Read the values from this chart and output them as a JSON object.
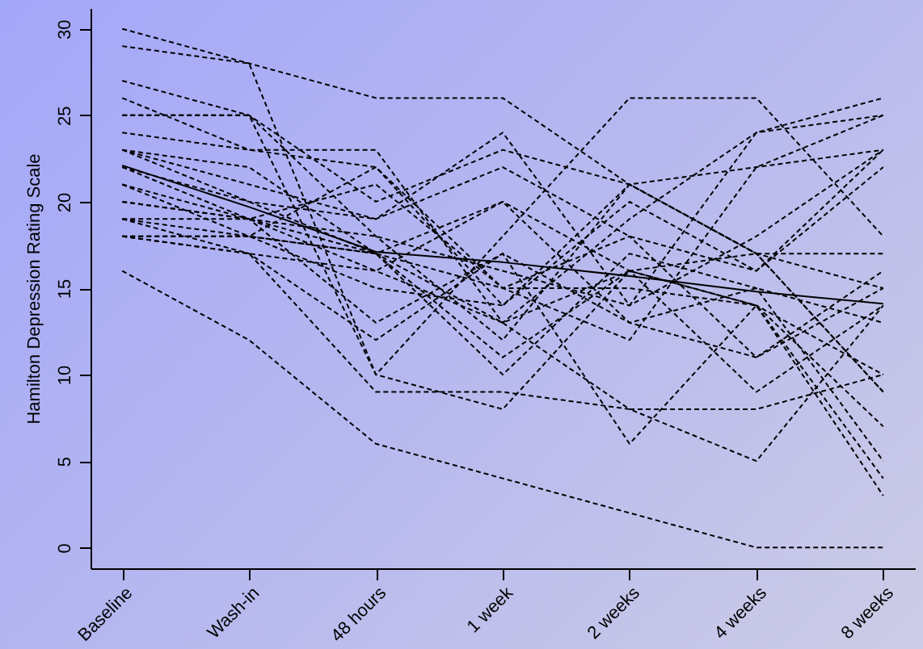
{
  "chart_data": {
    "type": "line",
    "ylabel": "Hamilton Depression Rating Scale",
    "categories": [
      "Baseline",
      "Wash-in",
      "48 hours",
      "1 week",
      "2 weeks",
      "4 weeks",
      "8 weeks"
    ],
    "ylim": [
      -1.2,
      31.2
    ],
    "yticks": [
      0,
      5,
      10,
      15,
      20,
      25,
      30
    ],
    "grid": false,
    "marker": "none",
    "series": [
      {
        "color": "#000000",
        "line_style": "dashed",
        "values": [
          30,
          28,
          26,
          26,
          21,
          17,
          15
        ]
      },
      {
        "color": "#000000",
        "line_style": "dashed",
        "values": [
          29,
          28,
          10,
          18,
          26,
          26,
          18
        ]
      },
      {
        "color": "#000000",
        "line_style": "dashed",
        "values": [
          27,
          25,
          20,
          23,
          21,
          22,
          23
        ]
      },
      {
        "color": "#000000",
        "line_style": "dashed",
        "values": [
          26,
          23,
          23,
          13,
          19,
          24,
          25
        ]
      },
      {
        "color": "#000000",
        "line_style": "dashed",
        "values": [
          25,
          25,
          18,
          12,
          21,
          17,
          9
        ]
      },
      {
        "color": "#000000",
        "line_style": "dashed",
        "values": [
          25,
          25,
          10,
          8,
          16,
          14,
          10
        ]
      },
      {
        "color": "#000000",
        "line_style": "dashed",
        "values": [
          24,
          23,
          22,
          14,
          20,
          16,
          23
        ]
      },
      {
        "color": "#000000",
        "line_style": "dashed",
        "values": [
          23,
          21,
          19,
          24,
          14,
          24,
          26
        ]
      },
      {
        "color": "#000000",
        "line_style": "dashed",
        "values": [
          23,
          20,
          17,
          15,
          12,
          22,
          25
        ]
      },
      {
        "color": "#000000",
        "line_style": "dashed",
        "values": [
          22,
          19,
          18,
          16,
          14,
          18,
          23
        ]
      },
      {
        "color": "#000000",
        "line_style": "dashed",
        "values": [
          22,
          20,
          19,
          22,
          18,
          16,
          22
        ]
      },
      {
        "color": "#000000",
        "line_style": "dashed",
        "values": [
          21,
          19,
          13,
          17,
          13,
          11,
          15
        ]
      },
      {
        "color": "#000000",
        "line_style": "dashed",
        "values": [
          21,
          18,
          17,
          10,
          17,
          15,
          5
        ]
      },
      {
        "color": "#000000",
        "line_style": "dashed",
        "values": [
          20,
          19,
          17,
          13,
          8,
          8,
          10
        ]
      },
      {
        "color": "#000000",
        "line_style": "dashed",
        "values": [
          20,
          19,
          16,
          20,
          13,
          15,
          13
        ]
      },
      {
        "color": "#000000",
        "line_style": "dashed",
        "values": [
          19,
          18,
          15,
          14,
          21,
          17,
          9
        ]
      },
      {
        "color": "#000000",
        "line_style": "dashed",
        "values": [
          19,
          17,
          12,
          17,
          6,
          14,
          4
        ]
      },
      {
        "color": "#000000",
        "line_style": "dashed",
        "values": [
          18,
          18,
          17,
          20,
          16,
          9,
          14
        ]
      },
      {
        "color": "#000000",
        "line_style": "dashed",
        "values": [
          18,
          17,
          16,
          13,
          16,
          14,
          3
        ]
      },
      {
        "color": "#000000",
        "line_style": "dashed",
        "values": [
          18,
          18,
          22,
          15,
          18,
          11,
          16
        ]
      },
      {
        "color": "#000000",
        "line_style": "dashed",
        "values": [
          18,
          17,
          9,
          9,
          8,
          5,
          14
        ]
      },
      {
        "color": "#000000",
        "line_style": "dashed",
        "values": [
          16,
          12,
          6,
          4,
          2,
          0,
          0
        ]
      },
      {
        "color": "#000000",
        "line_style": "dashed",
        "values": [
          23,
          22,
          17,
          11,
          16,
          17,
          17
        ]
      },
      {
        "color": "#000000",
        "line_style": "dashed",
        "values": [
          19,
          19,
          21,
          15,
          15,
          14,
          7
        ]
      },
      {
        "color": "#000000",
        "line_style": "solid",
        "values": [
          22.1,
          19.7,
          17.1,
          16.5,
          15.7,
          14.8,
          14.1
        ]
      }
    ]
  }
}
